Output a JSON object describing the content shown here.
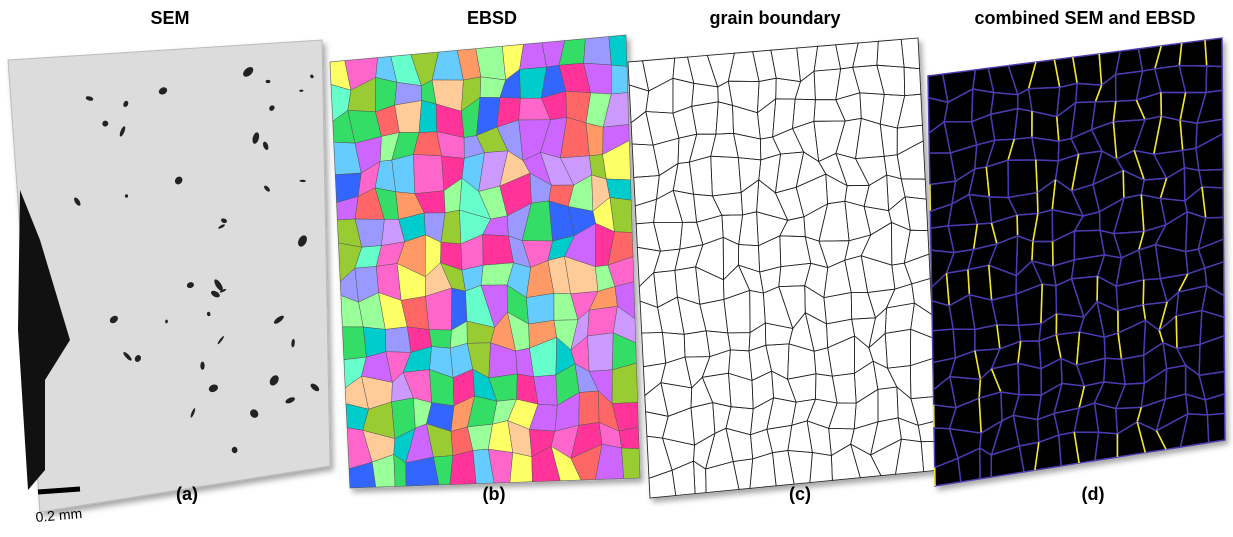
{
  "panels": [
    {
      "title": "SEM",
      "label": "(a)"
    },
    {
      "title": "EBSD",
      "label": "(b)"
    },
    {
      "title": "grain boundary",
      "label": "(c)"
    },
    {
      "title": "combined SEM and EBSD",
      "label": "(d)"
    }
  ],
  "scale_bar": "0.2 mm"
}
